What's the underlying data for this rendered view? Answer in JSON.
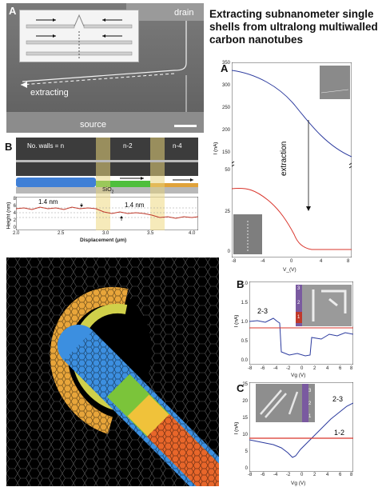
{
  "title": "Extracting subnanometer single shells from ultralong multiwalled carbon nanotubes",
  "panel_a_left": {
    "letter": "A",
    "labels": {
      "drain": "drain",
      "extracting": "extracting",
      "source": "source"
    }
  },
  "panel_b_left": {
    "letter": "B",
    "wall_labels": [
      "No. walls = n",
      "n-2",
      "n-4"
    ],
    "substrate": "SiO",
    "substrate_sub": "2",
    "step_labels": [
      "1.4 nm",
      "1.4 nm"
    ],
    "ylabel": "Height (nm)",
    "xlabel": "Displacement (μm)",
    "yticks": [
      "8",
      "6",
      "4",
      "2",
      "0"
    ],
    "xticks": [
      "2.0",
      "2.5",
      "3.0",
      "3.5",
      "4.0"
    ]
  },
  "right_a": {
    "letter": "A",
    "ylabel": "I (nA)",
    "xlabel": "V_(V)",
    "annotation": "extraction",
    "yticks_top": [
      "350",
      "300",
      "250",
      "200",
      "150"
    ],
    "yticks_bottom": [
      "50",
      "25",
      "0"
    ],
    "xticks": [
      "-8",
      "-4",
      "0",
      "4",
      "8"
    ]
  },
  "right_b": {
    "letter": "B",
    "ylabel": "I (nA)",
    "xlabel": "Vg (V)",
    "label": "2-3",
    "yticks": [
      "2.0",
      "1.5",
      "1.0",
      "0.5",
      "0.0"
    ],
    "xticks": [
      "-8",
      "-6",
      "-4",
      "-2",
      "0",
      "2",
      "4",
      "6",
      "8"
    ],
    "inset_marks": [
      "3",
      "2",
      "1"
    ]
  },
  "right_c": {
    "letter": "C",
    "ylabel": "I (nA)",
    "xlabel": "Vg (V)",
    "labels": [
      "2-3",
      "1-2"
    ],
    "yticks": [
      "25",
      "20",
      "15",
      "10",
      "5",
      "0"
    ],
    "xticks": [
      "-8",
      "-6",
      "-4",
      "-2",
      "0",
      "2",
      "4",
      "6",
      "8"
    ],
    "inset_marks": [
      "3",
      "2",
      "1"
    ]
  },
  "colors": {
    "blue_curve": "#2b3a9e",
    "red_curve": "#d9342b",
    "sem_gray": "#6c6c6c"
  }
}
